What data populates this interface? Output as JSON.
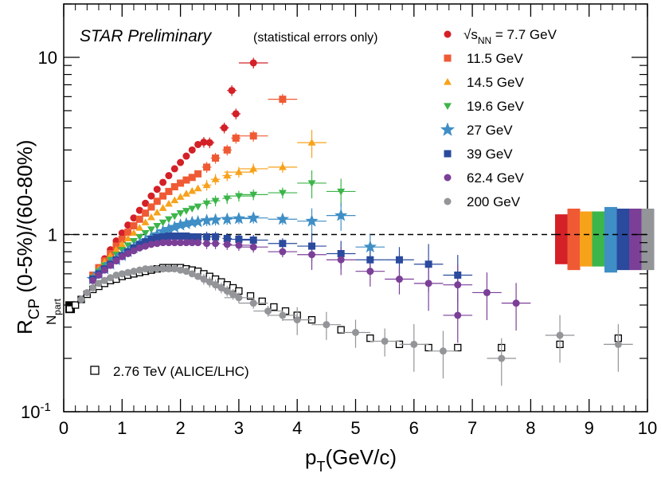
{
  "chart_data": {
    "type": "scatter",
    "title": "STAR Preliminary",
    "subtitle": "(statistical errors only)",
    "xlabel": "p_T(GeV/c)",
    "xlabel_main": "p",
    "xlabel_sub": "T",
    "xlabel_rest": "(GeV/c)",
    "ylabel": "R_CP (0-5%)/(60-80%)",
    "ylabel_main": "R",
    "ylabel_sub": "CP",
    "ylabel_rest": " (0-5%)/(60-80%)",
    "npart_label": "N",
    "npart_sub": "part",
    "xlim": [
      0,
      10
    ],
    "ylim": [
      0.1,
      20
    ],
    "yscale": "log",
    "x_ticks": [
      "0",
      "1",
      "2",
      "3",
      "4",
      "5",
      "6",
      "7",
      "8",
      "9",
      "10"
    ],
    "y_ticks": [
      {
        "value": 0.1,
        "label": "10",
        "sup": "-1"
      },
      {
        "value": 1,
        "label": "1",
        "sup": ""
      },
      {
        "value": 10,
        "label": "10",
        "sup": ""
      }
    ],
    "reference_line": 1,
    "sqrt_label": "√s",
    "sqrt_sub": "NN",
    "npart_band_value": 0.39,
    "series": [
      {
        "name": "= 7.7 GeV",
        "color": "#d42027",
        "marker": "circle",
        "points": [
          [
            0.5,
            0.57
          ],
          [
            0.6,
            0.65
          ],
          [
            0.7,
            0.73
          ],
          [
            0.8,
            0.82
          ],
          [
            0.9,
            0.92
          ],
          [
            1.0,
            1.02
          ],
          [
            1.1,
            1.13
          ],
          [
            1.2,
            1.24
          ],
          [
            1.3,
            1.37
          ],
          [
            1.4,
            1.5
          ],
          [
            1.5,
            1.65
          ],
          [
            1.6,
            1.8
          ],
          [
            1.7,
            1.97
          ],
          [
            1.8,
            2.15
          ],
          [
            1.9,
            2.35
          ],
          [
            2.0,
            2.55
          ],
          [
            2.1,
            2.77
          ],
          [
            2.2,
            3.0
          ],
          [
            2.3,
            3.22
          ],
          [
            2.4,
            3.32
          ],
          [
            2.5,
            3.3
          ],
          [
            2.75,
            4.0
          ],
          [
            2.95,
            4.8
          ],
          [
            2.88,
            6.5
          ],
          [
            3.25,
            9.3
          ]
        ]
      },
      {
        "name": "11.5 GeV",
        "color": "#ef5a34",
        "marker": "square",
        "points": [
          [
            0.5,
            0.59
          ],
          [
            0.6,
            0.65
          ],
          [
            0.7,
            0.71
          ],
          [
            0.8,
            0.78
          ],
          [
            0.9,
            0.86
          ],
          [
            1.0,
            0.94
          ],
          [
            1.1,
            1.03
          ],
          [
            1.2,
            1.12
          ],
          [
            1.3,
            1.22
          ],
          [
            1.4,
            1.32
          ],
          [
            1.5,
            1.43
          ],
          [
            1.6,
            1.54
          ],
          [
            1.7,
            1.65
          ],
          [
            1.8,
            1.75
          ],
          [
            1.9,
            1.86
          ],
          [
            2.0,
            1.95
          ],
          [
            2.1,
            2.03
          ],
          [
            2.2,
            2.1
          ],
          [
            2.3,
            2.2
          ],
          [
            2.45,
            2.4
          ],
          [
            2.6,
            2.7
          ],
          [
            2.8,
            3.0
          ],
          [
            2.95,
            3.5
          ],
          [
            3.25,
            3.6
          ],
          [
            3.75,
            5.8
          ]
        ]
      },
      {
        "name": "14.5 GeV",
        "color": "#f7a21b",
        "marker": "triangle-up",
        "points": [
          [
            0.5,
            0.58
          ],
          [
            0.6,
            0.64
          ],
          [
            0.7,
            0.7
          ],
          [
            0.8,
            0.76
          ],
          [
            0.9,
            0.82
          ],
          [
            1.0,
            0.88
          ],
          [
            1.1,
            0.95
          ],
          [
            1.2,
            1.02
          ],
          [
            1.3,
            1.09
          ],
          [
            1.4,
            1.17
          ],
          [
            1.5,
            1.25
          ],
          [
            1.6,
            1.33
          ],
          [
            1.7,
            1.41
          ],
          [
            1.8,
            1.49
          ],
          [
            1.9,
            1.56
          ],
          [
            2.0,
            1.63
          ],
          [
            2.1,
            1.7
          ],
          [
            2.2,
            1.76
          ],
          [
            2.3,
            1.82
          ],
          [
            2.45,
            1.9
          ],
          [
            2.6,
            2.05
          ],
          [
            2.8,
            2.15
          ],
          [
            3.0,
            2.25
          ],
          [
            3.25,
            2.35
          ],
          [
            3.75,
            2.4
          ],
          [
            4.25,
            3.3
          ]
        ]
      },
      {
        "name": "19.6 GeV",
        "color": "#3cb54a",
        "marker": "triangle-down",
        "points": [
          [
            0.5,
            0.57
          ],
          [
            0.6,
            0.62
          ],
          [
            0.7,
            0.67
          ],
          [
            0.8,
            0.72
          ],
          [
            0.9,
            0.77
          ],
          [
            1.0,
            0.82
          ],
          [
            1.1,
            0.87
          ],
          [
            1.2,
            0.92
          ],
          [
            1.3,
            0.97
          ],
          [
            1.4,
            1.02
          ],
          [
            1.5,
            1.07
          ],
          [
            1.6,
            1.12
          ],
          [
            1.7,
            1.17
          ],
          [
            1.8,
            1.22
          ],
          [
            1.9,
            1.27
          ],
          [
            2.0,
            1.32
          ],
          [
            2.1,
            1.36
          ],
          [
            2.2,
            1.4
          ],
          [
            2.3,
            1.44
          ],
          [
            2.45,
            1.5
          ],
          [
            2.6,
            1.55
          ],
          [
            2.8,
            1.6
          ],
          [
            3.0,
            1.65
          ],
          [
            3.25,
            1.68
          ],
          [
            3.75,
            1.72
          ],
          [
            4.25,
            1.95
          ],
          [
            4.75,
            1.75
          ]
        ]
      },
      {
        "name": "27 GeV",
        "color": "#3f8ec6",
        "marker": "star",
        "points": [
          [
            0.5,
            0.56
          ],
          [
            0.6,
            0.6
          ],
          [
            0.7,
            0.64
          ],
          [
            0.8,
            0.68
          ],
          [
            0.9,
            0.72
          ],
          [
            1.0,
            0.76
          ],
          [
            1.1,
            0.8
          ],
          [
            1.2,
            0.84
          ],
          [
            1.3,
            0.88
          ],
          [
            1.4,
            0.92
          ],
          [
            1.5,
            0.96
          ],
          [
            1.6,
            1.0
          ],
          [
            1.7,
            1.04
          ],
          [
            1.8,
            1.07
          ],
          [
            1.9,
            1.1
          ],
          [
            2.0,
            1.13
          ],
          [
            2.1,
            1.15
          ],
          [
            2.2,
            1.17
          ],
          [
            2.3,
            1.18
          ],
          [
            2.45,
            1.2
          ],
          [
            2.6,
            1.21
          ],
          [
            2.8,
            1.22
          ],
          [
            3.0,
            1.23
          ],
          [
            3.25,
            1.24
          ],
          [
            3.75,
            1.22
          ],
          [
            4.25,
            1.19
          ],
          [
            4.75,
            1.28
          ],
          [
            5.25,
            0.85
          ]
        ]
      },
      {
        "name": "39 GeV",
        "color": "#2a4a9e",
        "marker": "square",
        "points": [
          [
            0.5,
            0.56
          ],
          [
            0.6,
            0.6
          ],
          [
            0.7,
            0.64
          ],
          [
            0.8,
            0.68
          ],
          [
            0.9,
            0.72
          ],
          [
            1.0,
            0.76
          ],
          [
            1.1,
            0.8
          ],
          [
            1.2,
            0.84
          ],
          [
            1.3,
            0.88
          ],
          [
            1.4,
            0.91
          ],
          [
            1.5,
            0.94
          ],
          [
            1.6,
            0.96
          ],
          [
            1.7,
            0.97
          ],
          [
            1.8,
            0.98
          ],
          [
            1.9,
            0.98
          ],
          [
            2.0,
            0.98
          ],
          [
            2.1,
            0.98
          ],
          [
            2.2,
            0.97
          ],
          [
            2.3,
            0.97
          ],
          [
            2.45,
            0.97
          ],
          [
            2.6,
            0.97
          ],
          [
            2.8,
            0.95
          ],
          [
            3.0,
            0.94
          ],
          [
            3.25,
            0.93
          ],
          [
            3.75,
            0.89
          ],
          [
            4.25,
            0.86
          ],
          [
            4.75,
            0.78
          ],
          [
            5.25,
            0.72
          ],
          [
            5.75,
            0.72
          ],
          [
            6.25,
            0.68
          ],
          [
            6.75,
            0.59
          ]
        ]
      },
      {
        "name": "62.4 GeV",
        "color": "#7b3f98",
        "marker": "circle",
        "points": [
          [
            0.5,
            0.55
          ],
          [
            0.6,
            0.59
          ],
          [
            0.7,
            0.63
          ],
          [
            0.8,
            0.67
          ],
          [
            0.9,
            0.71
          ],
          [
            1.0,
            0.75
          ],
          [
            1.1,
            0.78
          ],
          [
            1.2,
            0.81
          ],
          [
            1.3,
            0.84
          ],
          [
            1.4,
            0.86
          ],
          [
            1.5,
            0.88
          ],
          [
            1.6,
            0.89
          ],
          [
            1.7,
            0.9
          ],
          [
            1.8,
            0.9
          ],
          [
            1.9,
            0.9
          ],
          [
            2.0,
            0.9
          ],
          [
            2.1,
            0.9
          ],
          [
            2.2,
            0.9
          ],
          [
            2.3,
            0.9
          ],
          [
            2.45,
            0.89
          ],
          [
            2.6,
            0.89
          ],
          [
            2.8,
            0.88
          ],
          [
            3.0,
            0.87
          ],
          [
            3.25,
            0.85
          ],
          [
            3.75,
            0.8
          ],
          [
            4.25,
            0.77
          ],
          [
            4.75,
            0.72
          ],
          [
            5.25,
            0.62
          ],
          [
            5.75,
            0.56
          ],
          [
            6.25,
            0.53
          ],
          [
            6.75,
            0.52
          ],
          [
            7.25,
            0.47
          ],
          [
            7.75,
            0.41
          ],
          [
            6.75,
            0.35
          ]
        ]
      },
      {
        "name": "200 GeV",
        "color": "#939598",
        "marker": "circle",
        "points": [
          [
            0.3,
            0.43
          ],
          [
            0.4,
            0.47
          ],
          [
            0.5,
            0.5
          ],
          [
            0.6,
            0.53
          ],
          [
            0.7,
            0.55
          ],
          [
            0.8,
            0.57
          ],
          [
            0.9,
            0.59
          ],
          [
            1.0,
            0.6
          ],
          [
            1.1,
            0.61
          ],
          [
            1.2,
            0.62
          ],
          [
            1.3,
            0.63
          ],
          [
            1.4,
            0.64
          ],
          [
            1.5,
            0.64
          ],
          [
            1.6,
            0.64
          ],
          [
            1.7,
            0.64
          ],
          [
            1.8,
            0.64
          ],
          [
            1.9,
            0.64
          ],
          [
            2.0,
            0.63
          ],
          [
            2.1,
            0.62
          ],
          [
            2.2,
            0.6
          ],
          [
            2.3,
            0.58
          ],
          [
            2.4,
            0.56
          ],
          [
            2.5,
            0.54
          ],
          [
            2.6,
            0.52
          ],
          [
            2.7,
            0.5
          ],
          [
            2.8,
            0.48
          ],
          [
            2.9,
            0.46
          ],
          [
            3.0,
            0.44
          ],
          [
            3.25,
            0.41
          ],
          [
            3.5,
            0.37
          ],
          [
            3.75,
            0.35
          ],
          [
            4.0,
            0.33
          ],
          [
            4.5,
            0.31
          ],
          [
            5.0,
            0.28
          ],
          [
            5.5,
            0.25
          ],
          [
            6.0,
            0.24
          ],
          [
            6.5,
            0.22
          ],
          [
            7.5,
            0.2
          ],
          [
            8.5,
            0.27
          ],
          [
            9.5,
            0.24
          ]
        ]
      }
    ],
    "alice": {
      "name": "2.76 TeV (ALICE/LHC)",
      "color": "#000000",
      "marker": "open-square",
      "points": [
        [
          0.1,
          0.38
        ],
        [
          0.2,
          0.4
        ],
        [
          0.3,
          0.43
        ],
        [
          0.4,
          0.46
        ],
        [
          0.5,
          0.49
        ],
        [
          0.6,
          0.51
        ],
        [
          0.7,
          0.53
        ],
        [
          0.8,
          0.55
        ],
        [
          0.9,
          0.56
        ],
        [
          1.0,
          0.58
        ],
        [
          1.1,
          0.59
        ],
        [
          1.2,
          0.6
        ],
        [
          1.3,
          0.61
        ],
        [
          1.4,
          0.62
        ],
        [
          1.5,
          0.63
        ],
        [
          1.6,
          0.64
        ],
        [
          1.7,
          0.65
        ],
        [
          1.8,
          0.65
        ],
        [
          1.9,
          0.65
        ],
        [
          2.0,
          0.65
        ],
        [
          2.1,
          0.64
        ],
        [
          2.2,
          0.63
        ],
        [
          2.3,
          0.62
        ],
        [
          2.4,
          0.6
        ],
        [
          2.5,
          0.58
        ],
        [
          2.6,
          0.56
        ],
        [
          2.7,
          0.54
        ],
        [
          2.8,
          0.52
        ],
        [
          2.9,
          0.5
        ],
        [
          3.0,
          0.48
        ],
        [
          3.2,
          0.45
        ],
        [
          3.4,
          0.42
        ],
        [
          3.6,
          0.39
        ],
        [
          3.8,
          0.37
        ],
        [
          4.0,
          0.35
        ],
        [
          4.25,
          0.33
        ],
        [
          4.75,
          0.29
        ],
        [
          5.25,
          0.26
        ],
        [
          5.75,
          0.24
        ],
        [
          6.25,
          0.23
        ],
        [
          6.75,
          0.23
        ],
        [
          7.5,
          0.23
        ],
        [
          8.5,
          0.24
        ],
        [
          9.5,
          0.26
        ]
      ]
    },
    "syst_band_colors": [
      "#d42027",
      "#ef5a34",
      "#f7a21b",
      "#3cb54a",
      "#3f8ec6",
      "#2a4a9e",
      "#7b3f98",
      "#939598"
    ],
    "syst_band_ranges": [
      [
        0.68,
        1.3
      ],
      [
        0.63,
        1.4
      ],
      [
        0.66,
        1.35
      ],
      [
        0.66,
        1.35
      ],
      [
        0.61,
        1.43
      ],
      [
        0.63,
        1.4
      ],
      [
        0.63,
        1.4
      ],
      [
        0.63,
        1.4
      ]
    ]
  }
}
